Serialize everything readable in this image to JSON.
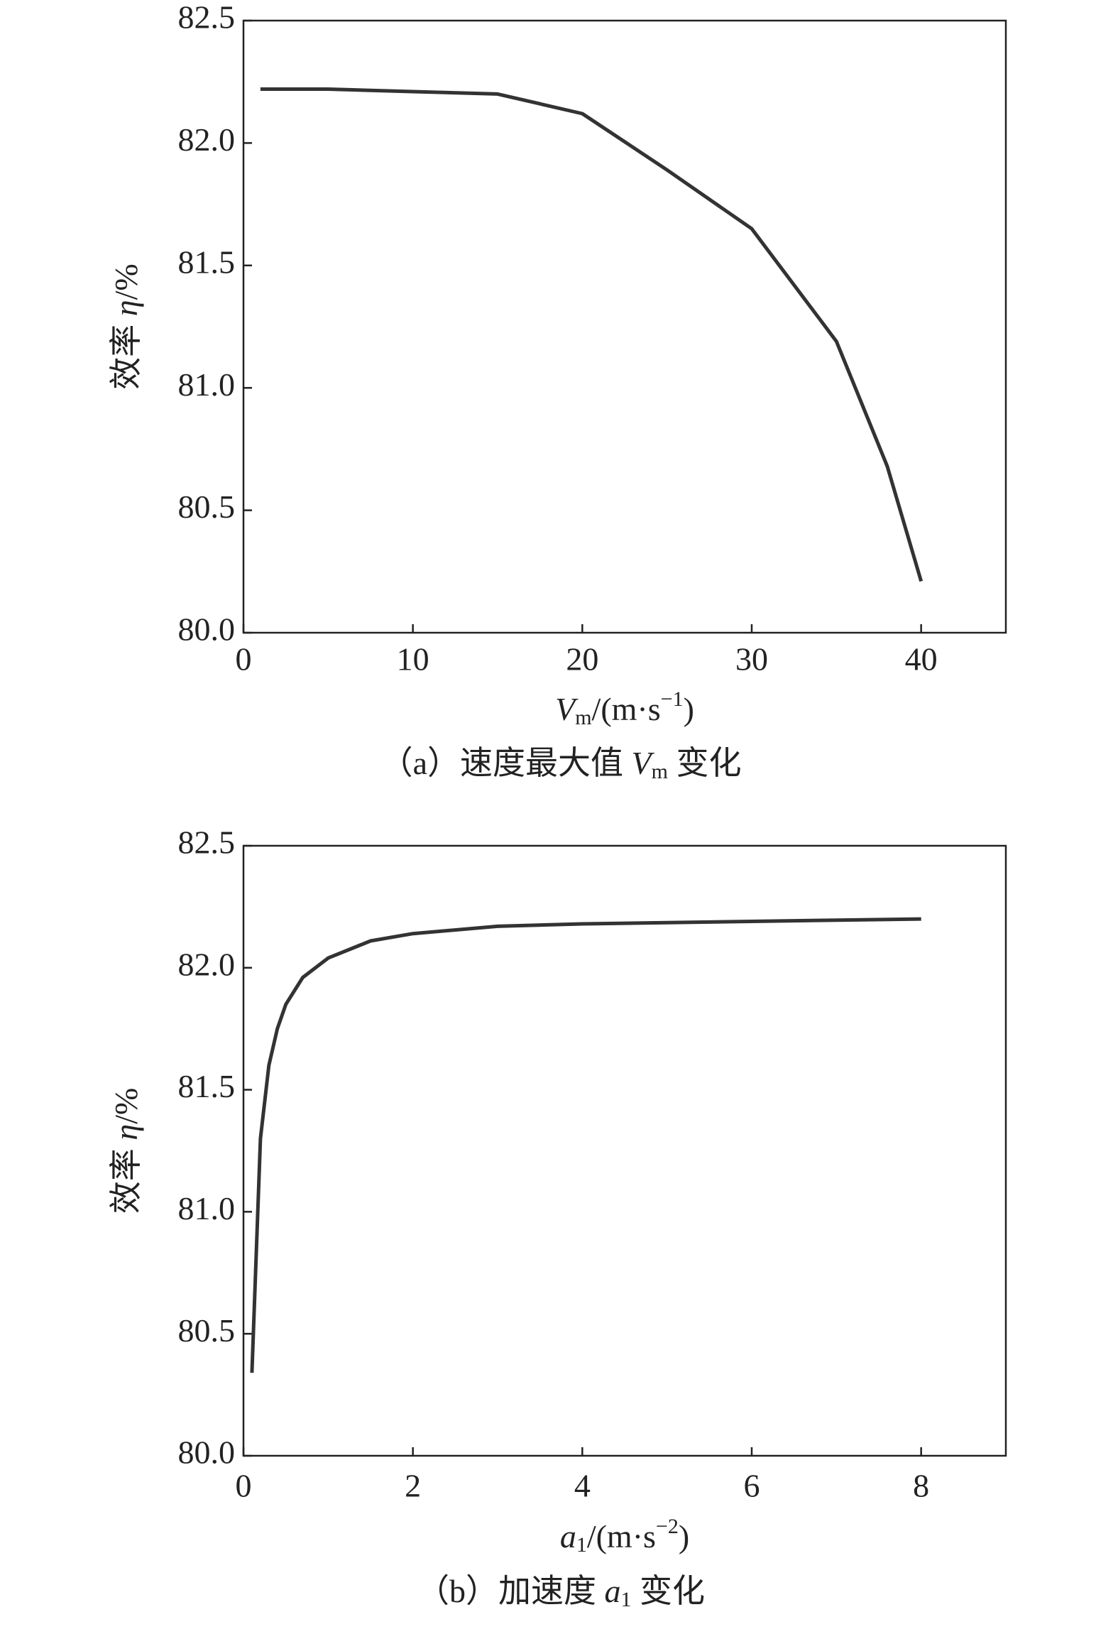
{
  "chart_data": [
    {
      "type": "line",
      "color": "#333333",
      "xlabel": [
        "V",
        "m",
        "/(m·s",
        "−1",
        ")"
      ],
      "ylabel": [
        "效率 ",
        "η",
        "/%"
      ],
      "caption": [
        "（a）速度最大值 ",
        "V",
        "m",
        " 变化"
      ],
      "x": [
        1,
        5,
        10,
        15,
        20,
        25,
        30,
        35,
        38,
        40
      ],
      "values": [
        82.22,
        82.22,
        82.21,
        82.2,
        82.12,
        81.89,
        81.65,
        81.19,
        80.68,
        80.21
      ],
      "xlim": [
        0,
        45
      ],
      "xticks": [
        0,
        10,
        20,
        30,
        40
      ],
      "ylim": [
        80,
        82.5
      ],
      "yticks": [
        {
          "value": 80,
          "label": "80.0"
        },
        80.5,
        {
          "value": 81,
          "label": "81.0"
        },
        81.5,
        {
          "value": 82,
          "label": "82.0"
        },
        82.5
      ]
    },
    {
      "type": "line",
      "color": "#333333",
      "xlabel": [
        "a",
        "1",
        "/(m·s",
        "−2",
        ")"
      ],
      "ylabel": [
        "效率 ",
        "η",
        "/%"
      ],
      "caption": [
        "（b）加速度 ",
        "a",
        "1",
        " 变化"
      ],
      "x": [
        0.1,
        0.2,
        0.3,
        0.4,
        0.5,
        0.7,
        1,
        1.5,
        2,
        3,
        4,
        6,
        8
      ],
      "values": [
        80.34,
        81.3,
        81.6,
        81.75,
        81.85,
        81.96,
        82.04,
        82.11,
        82.14,
        82.17,
        82.18,
        82.19,
        82.2
      ],
      "xlim": [
        0,
        9
      ],
      "xticks": [
        0,
        2,
        4,
        6,
        8
      ],
      "ylim": [
        80,
        82.5
      ],
      "yticks": [
        {
          "value": 80,
          "label": "80.0"
        },
        80.5,
        {
          "value": 81,
          "label": "81.0"
        },
        81.5,
        {
          "value": 82,
          "label": "82.0"
        },
        82.5
      ]
    }
  ]
}
